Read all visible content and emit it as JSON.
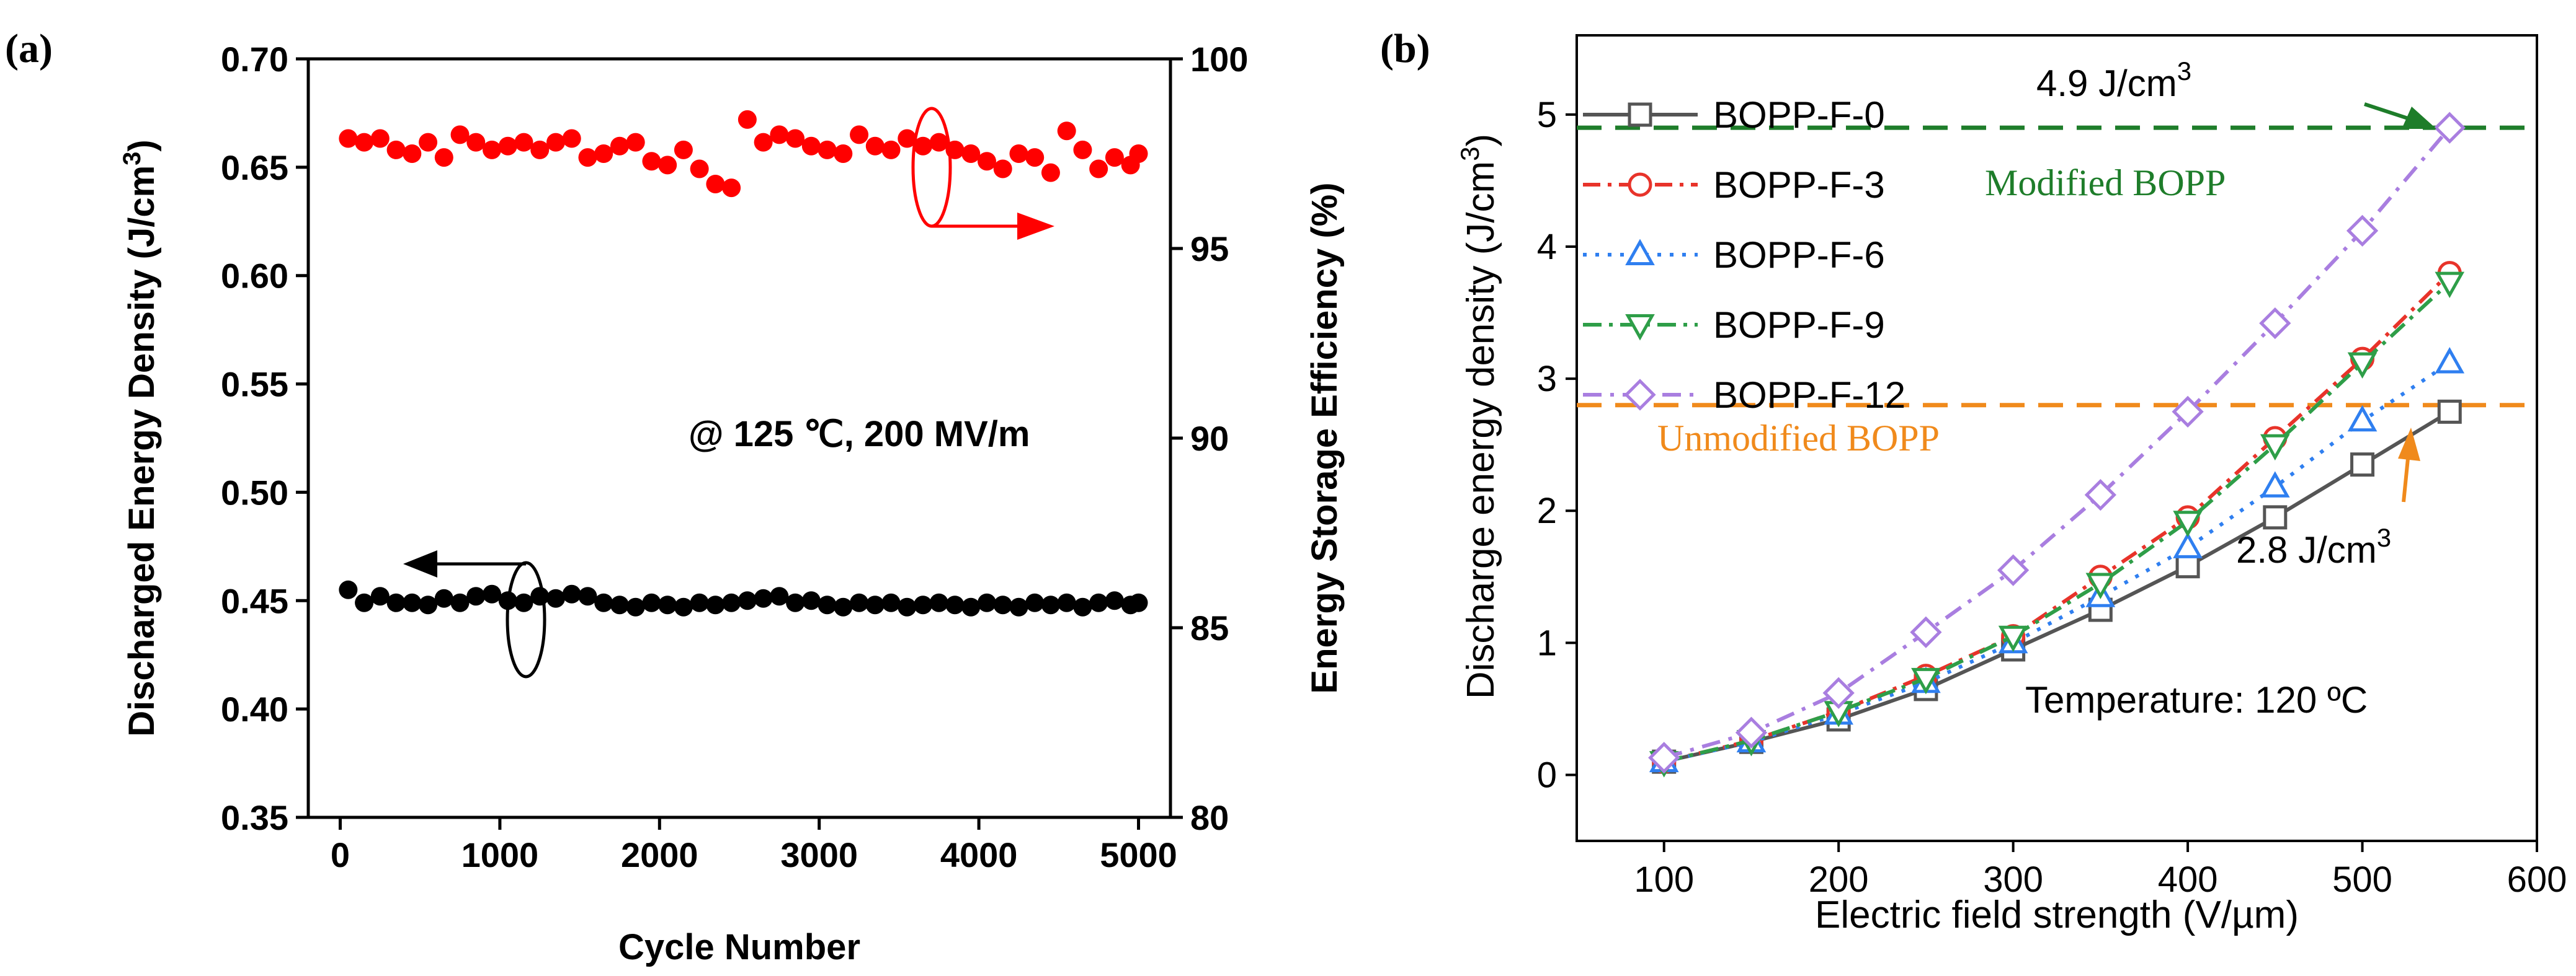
{
  "panel_a": {
    "label": "(a)",
    "annotation": "@ 125 ℃, 200 MV/m",
    "chart_data": {
      "type": "scatter",
      "xlabel": "Cycle Number",
      "ylabel_left": "Discharged Energy Density (J/cm",
      "ylabel_left_sup": "3",
      "ylabel_left_close": ")",
      "ylabel_right": "Energy Storage Efficiency (%)",
      "xlim": [
        -200,
        5200
      ],
      "ylim_left": [
        0.35,
        0.7
      ],
      "ylim_right": [
        80,
        100
      ],
      "xticks": [
        "0",
        "1000",
        "2000",
        "3000",
        "4000",
        "5000"
      ],
      "yticks_left": [
        "0.35",
        "0.40",
        "0.45",
        "0.50",
        "0.55",
        "0.60",
        "0.65",
        "0.70"
      ],
      "yticks_right": [
        "80",
        "85",
        "90",
        "95",
        "100"
      ],
      "x": [
        50,
        150,
        250,
        350,
        450,
        550,
        650,
        750,
        850,
        950,
        1050,
        1150,
        1250,
        1350,
        1450,
        1550,
        1650,
        1750,
        1850,
        1950,
        2050,
        2150,
        2250,
        2350,
        2450,
        2550,
        2650,
        2750,
        2850,
        2950,
        3050,
        3150,
        3250,
        3350,
        3450,
        3550,
        3650,
        3750,
        3850,
        3950,
        4050,
        4150,
        4250,
        4350,
        4450,
        4550,
        4650,
        4750,
        4850,
        4950,
        5000
      ],
      "series": [
        {
          "name": "Discharged Energy Density",
          "axis": "left",
          "color": "#000000",
          "values": [
            0.455,
            0.449,
            0.452,
            0.449,
            0.449,
            0.448,
            0.451,
            0.449,
            0.452,
            0.453,
            0.45,
            0.449,
            0.452,
            0.451,
            0.453,
            0.452,
            0.449,
            0.448,
            0.447,
            0.449,
            0.448,
            0.447,
            0.449,
            0.448,
            0.449,
            0.45,
            0.451,
            0.452,
            0.449,
            0.45,
            0.448,
            0.447,
            0.449,
            0.448,
            0.449,
            0.447,
            0.448,
            0.449,
            0.448,
            0.447,
            0.449,
            0.448,
            0.447,
            0.449,
            0.448,
            0.449,
            0.447,
            0.449,
            0.45,
            0.448,
            0.449
          ]
        },
        {
          "name": "Energy Storage Efficiency",
          "axis": "right",
          "color": "#ff0000",
          "values": [
            97.9,
            97.8,
            97.9,
            97.6,
            97.5,
            97.8,
            97.4,
            98.0,
            97.8,
            97.6,
            97.7,
            97.8,
            97.6,
            97.8,
            97.9,
            97.4,
            97.5,
            97.7,
            97.8,
            97.3,
            97.2,
            97.6,
            97.1,
            96.7,
            96.6,
            98.4,
            97.8,
            98.0,
            97.9,
            97.7,
            97.6,
            97.5,
            98.0,
            97.7,
            97.6,
            97.9,
            97.7,
            97.8,
            97.6,
            97.5,
            97.3,
            97.1,
            97.5,
            97.4,
            97.0,
            98.1,
            97.6,
            97.1,
            97.4,
            97.2,
            97.5
          ]
        }
      ]
    }
  },
  "panel_b": {
    "label": "(b)",
    "annotation_temp": "Temperature: 120 ºC",
    "chart_data": {
      "type": "line",
      "xlabel": "Electric field strength (V/µm)",
      "ylabel": "Discharge energy density (J/cm",
      "ylabel_sup": "3",
      "ylabel_close": ")",
      "xlim": [
        50,
        600
      ],
      "ylim": [
        -0.5,
        5.6
      ],
      "xticks": [
        "100",
        "200",
        "300",
        "400",
        "500",
        "600"
      ],
      "yticks": [
        "0",
        "1",
        "2",
        "3",
        "4",
        "5"
      ],
      "x": [
        100,
        150,
        200,
        250,
        300,
        350,
        400,
        450,
        500,
        550
      ],
      "series": [
        {
          "name": "BOPP-F-0",
          "color": "#555555",
          "marker": "square",
          "dash": "",
          "values": [
            0.1,
            0.25,
            0.42,
            0.65,
            0.95,
            1.25,
            1.58,
            1.95,
            2.35,
            2.75
          ]
        },
        {
          "name": "BOPP-F-3",
          "color": "#e8332a",
          "marker": "circle",
          "dash": "28,12,6,12",
          "values": [
            0.1,
            0.26,
            0.48,
            0.75,
            1.05,
            1.5,
            1.95,
            2.55,
            3.15,
            3.8
          ]
        },
        {
          "name": "BOPP-F-6",
          "color": "#2f7ff0",
          "marker": "triangle",
          "dash": "6,14",
          "values": [
            0.1,
            0.25,
            0.46,
            0.7,
            1.0,
            1.35,
            1.72,
            2.18,
            2.68,
            3.12
          ]
        },
        {
          "name": "BOPP-F-9",
          "color": "#2e9e48",
          "marker": "triangle-down",
          "dash": "30,12,6,12",
          "values": [
            0.1,
            0.26,
            0.48,
            0.73,
            1.05,
            1.45,
            1.92,
            2.5,
            3.12,
            3.73
          ]
        },
        {
          "name": "BOPP-F-12",
          "color": "#a97ee0",
          "marker": "diamond",
          "dash": "30,14,6,14",
          "values": [
            0.13,
            0.32,
            0.62,
            1.08,
            1.55,
            2.12,
            2.75,
            3.42,
            4.12,
            4.9
          ]
        }
      ],
      "reference_lines": [
        {
          "y": 4.9,
          "label": "Modified BOPP",
          "value_label": "4.9 J/cm",
          "value_sup": "3",
          "color": "#1e7d2a"
        },
        {
          "y": 2.8,
          "label": "Unmodified BOPP",
          "value_label": "2.8 J/cm",
          "value_sup": "3",
          "color": "#f08a1c"
        }
      ]
    }
  },
  "colors": {
    "black_series": "#000000",
    "red_series": "#ff0000",
    "ref_green": "#1e7d2a",
    "ref_orange": "#f08a1c"
  }
}
